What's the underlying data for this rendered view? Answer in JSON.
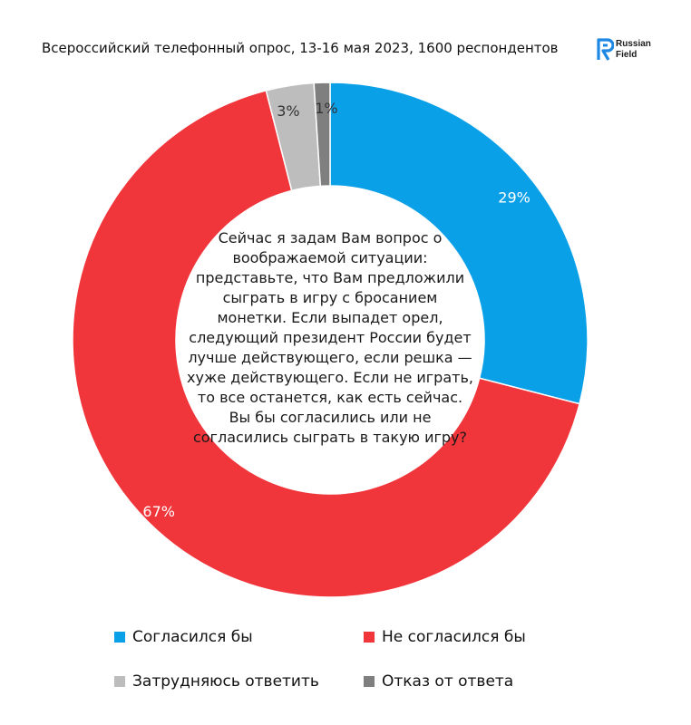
{
  "header": {
    "title": "Всероссийский телефонный опрос, 13-16 мая 2023, 1600 респондентов"
  },
  "logo": {
    "line1": "Russian",
    "line2": "Field",
    "color": "#1e88e5"
  },
  "question": "Сейчас я задам Вам вопрос о воображаемой ситуации: представьте, что Вам предложили сыграть в игру с бросанием монетки. Если выпадет орел, следующий президент России будет лучше действующего, если решка — хуже действующего. Если не играть, то все останется, как есть сейчас. Вы бы согласились или не согласились сыграть в такую игру?",
  "chart_data": {
    "type": "pie",
    "donut": true,
    "title": "",
    "series": [
      {
        "name": "Согласился бы",
        "value": 29,
        "label": "29%",
        "color": "#0aa0e8"
      },
      {
        "name": "Не согласился бы",
        "value": 67,
        "label": "67%",
        "color": "#f0353b"
      },
      {
        "name": "Затрудняюсь ответить",
        "value": 3,
        "label": "3%",
        "color": "#bdbdbd"
      },
      {
        "name": "Отказ от ответа",
        "value": 1,
        "label": "1%",
        "color": "#7f7f7f"
      }
    ],
    "legend_position": "bottom"
  }
}
